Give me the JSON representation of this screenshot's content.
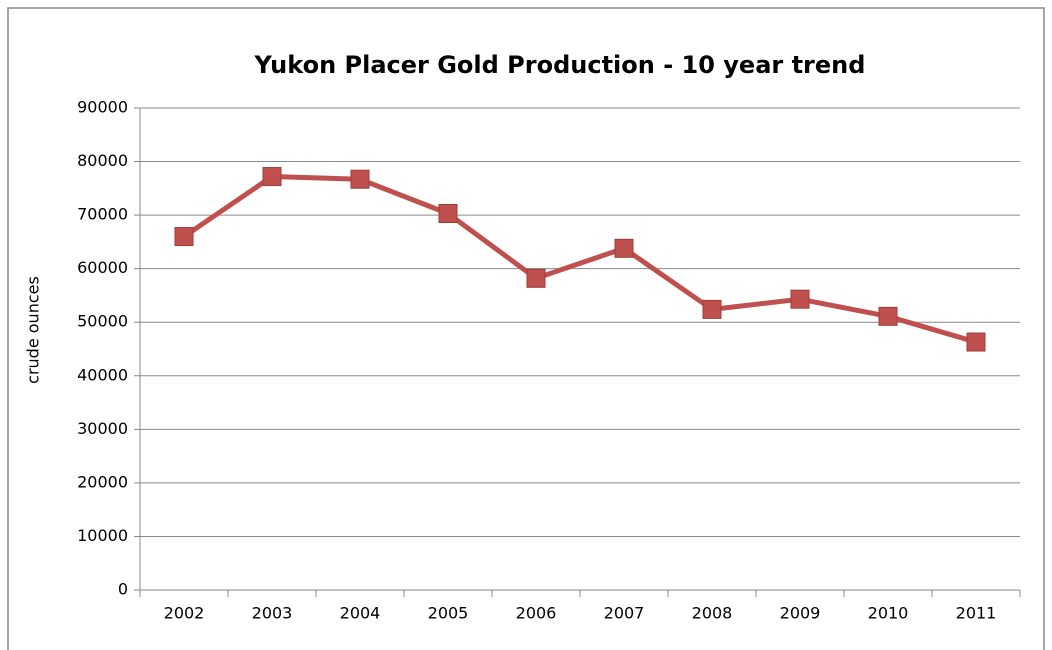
{
  "chart_data": {
    "type": "line",
    "title": "Yukon Placer Gold Production - 10 year trend",
    "y_label": "crude ounces",
    "categories": [
      "2002",
      "2003",
      "2004",
      "2005",
      "2006",
      "2007",
      "2008",
      "2009",
      "2010",
      "2011"
    ],
    "series": [
      {
        "name": "crude ounces",
        "color": "#c0504d",
        "values": [
          66000,
          77200,
          76700,
          70300,
          58200,
          63800,
          52400,
          54300,
          51100,
          46300
        ]
      }
    ],
    "ylim": [
      0,
      90000
    ],
    "yticks": [
      0,
      10000,
      20000,
      30000,
      40000,
      50000,
      60000,
      70000,
      80000,
      90000
    ],
    "grid": true
  }
}
